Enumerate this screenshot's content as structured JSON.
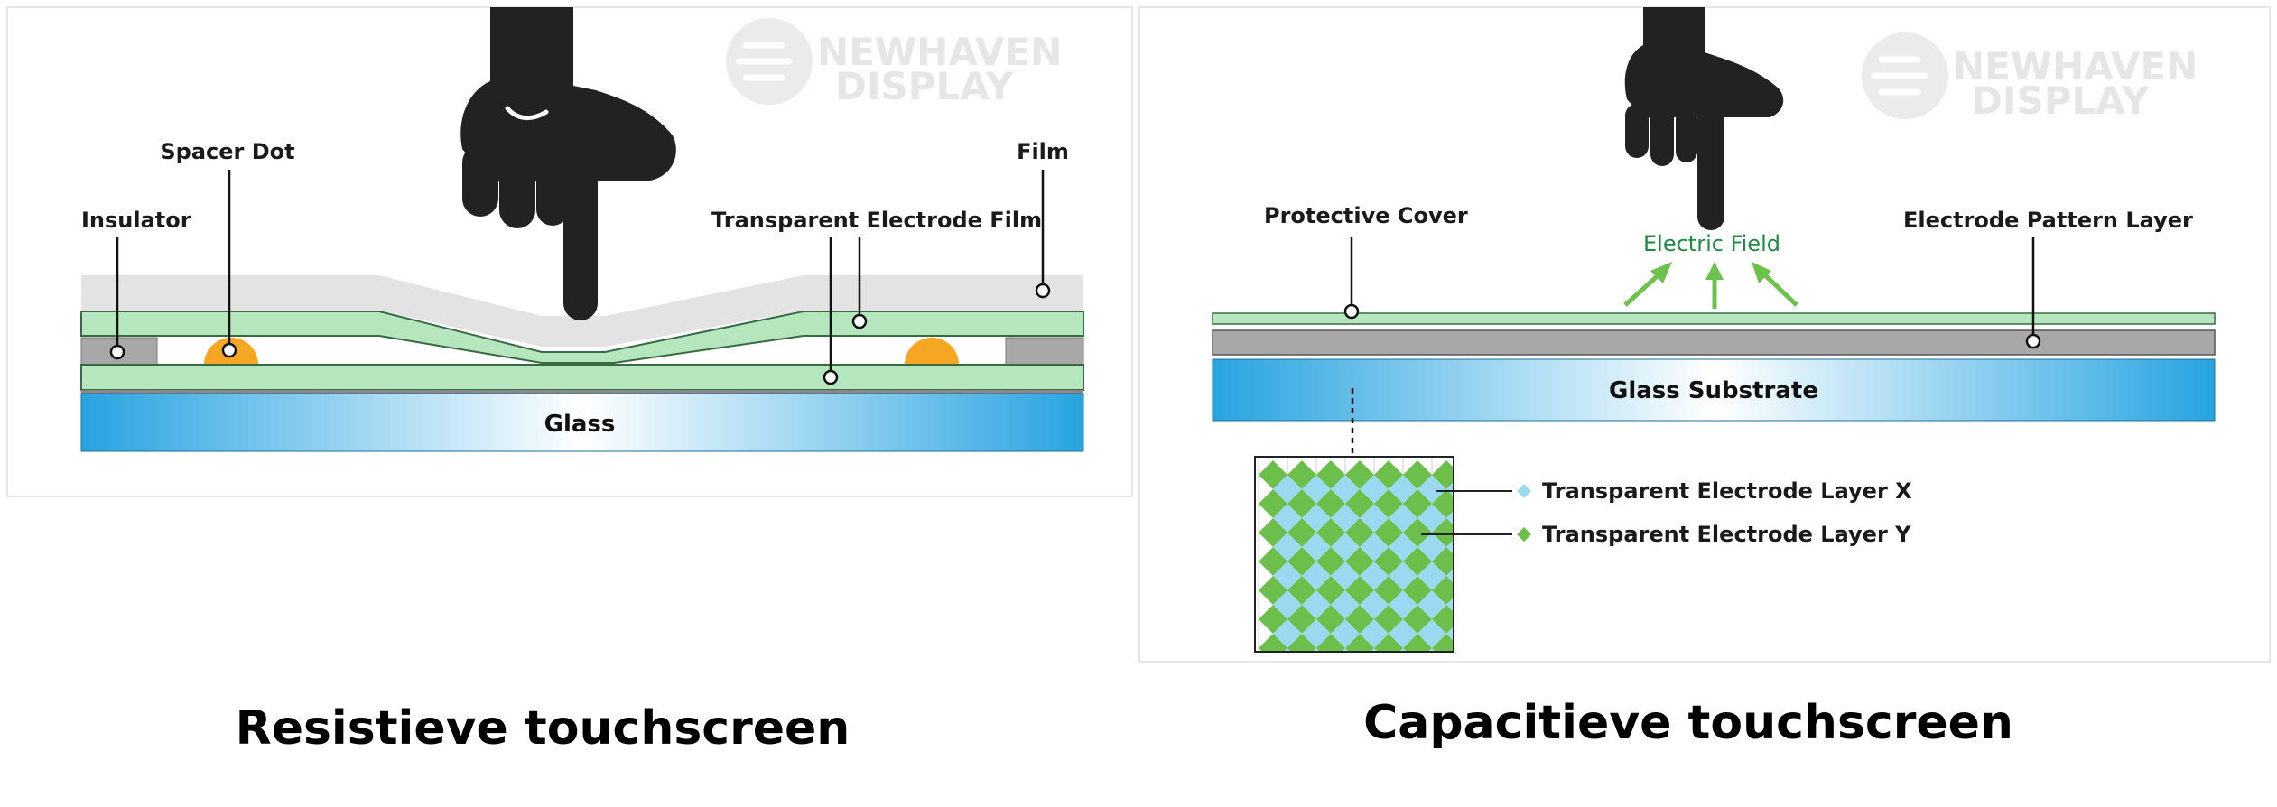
{
  "watermark": {
    "line1": "NEWHAVEN",
    "line2": "DISPLAY"
  },
  "resistive": {
    "caption": "Resistieve touchscreen",
    "labels": {
      "spacer_dot": "Spacer Dot",
      "film": "Film",
      "insulator": "Insulator",
      "transparent_electrode_film": "Transparent Electrode Film",
      "glass": "Glass"
    }
  },
  "capacitive": {
    "caption": "Capacitieve touchscreen",
    "labels": {
      "protective_cover": "Protective Cover",
      "electric_field": "Electric Field",
      "electrode_pattern_layer": "Electrode Pattern Layer",
      "glass_substrate": "Glass Substrate",
      "layer_x": "Transparent Electrode Layer X",
      "layer_y": "Transparent Electrode Layer Y"
    }
  },
  "colors": {
    "film_gray": "#e3e3e3",
    "electrode_green": "#b5e6bd",
    "insulator_gray": "#a8a8a8",
    "spacer_orange": "#f5a623",
    "glass_blue": "#2aa6e2",
    "diamond_green": "#6cbf4a",
    "diamond_blue": "#9ad9ef",
    "field_green": "#6cc24a",
    "hand": "#222222"
  }
}
